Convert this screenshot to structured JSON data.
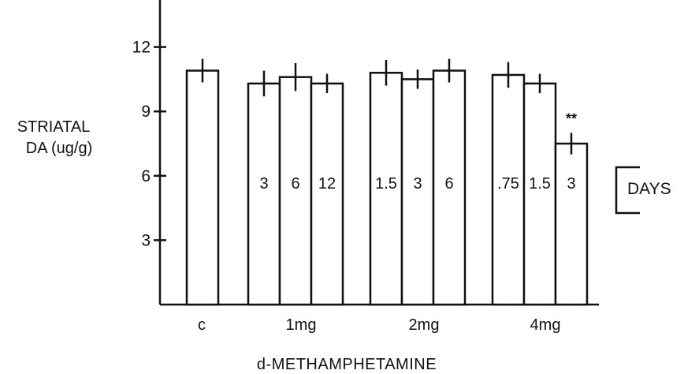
{
  "chart_data": {
    "type": "bar",
    "ylabel": [
      "STRIATAL",
      "DA (ug/g)"
    ],
    "xlabel": "d-METHAMPHETAMINE",
    "ylim": [
      0,
      14
    ],
    "yticks": [
      3,
      6,
      9,
      12
    ],
    "ytick_labels": [
      "3",
      "6",
      "9",
      "12"
    ],
    "groups": [
      {
        "label": "c",
        "bars": [
          {
            "label": "",
            "value": 10.9,
            "error": 0.55
          }
        ]
      },
      {
        "label": "1mg",
        "bars": [
          {
            "label": "3",
            "value": 10.3,
            "error": 0.6
          },
          {
            "label": "6",
            "value": 10.6,
            "error": 0.65
          },
          {
            "label": "12",
            "value": 10.3,
            "error": 0.45
          }
        ]
      },
      {
        "label": "2mg",
        "bars": [
          {
            "label": "1.5",
            "value": 10.8,
            "error": 0.6
          },
          {
            "label": "3",
            "value": 10.5,
            "error": 0.45
          },
          {
            "label": "6",
            "value": 10.9,
            "error": 0.55
          }
        ]
      },
      {
        "label": "4mg",
        "bars": [
          {
            "label": ".75",
            "value": 10.7,
            "error": 0.6
          },
          {
            "label": "1.5",
            "value": 10.3,
            "error": 0.45
          },
          {
            "label": "3",
            "value": 7.5,
            "error": 0.5,
            "annotation": "**"
          }
        ]
      }
    ],
    "legend": {
      "label": "DAYS"
    },
    "grid": false
  }
}
